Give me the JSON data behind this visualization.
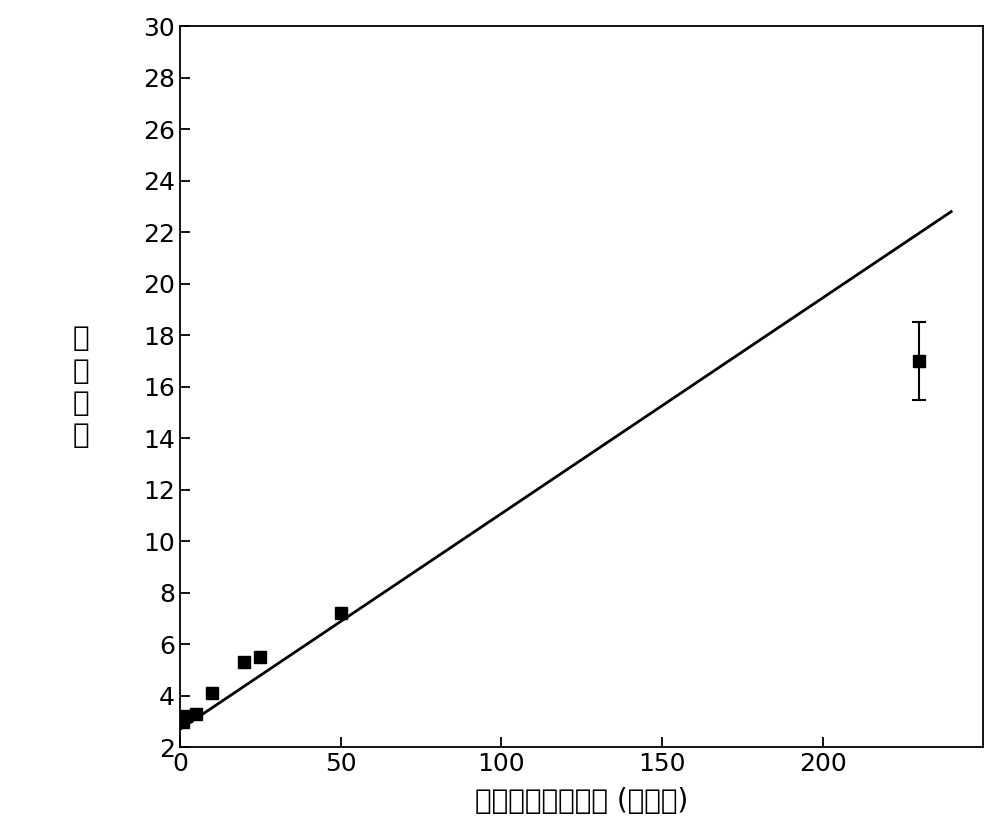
{
  "x_data": [
    1,
    2,
    5,
    10,
    20,
    25,
    50,
    230
  ],
  "y_data": [
    3.0,
    3.2,
    3.3,
    4.1,
    5.3,
    5.5,
    7.2,
    17.0
  ],
  "y_err": [
    0.0,
    0.0,
    0.0,
    0.0,
    0.0,
    0.0,
    0.0,
    1.5
  ],
  "fit_x": [
    0,
    240
  ],
  "fit_y": [
    2.7,
    22.8
  ],
  "xlabel": "内源性非编码核酸 (皮摩尔)",
  "ylabel": "荧光强度",
  "xlim": [
    0,
    250
  ],
  "ylim": [
    2,
    30
  ],
  "xticks": [
    0,
    50,
    100,
    150,
    200
  ],
  "yticks": [
    2,
    4,
    6,
    8,
    10,
    12,
    14,
    16,
    18,
    20,
    22,
    24,
    26,
    28,
    30
  ],
  "marker_color": "#000000",
  "line_color": "#000000",
  "background_color": "#ffffff",
  "xlabel_fontsize": 20,
  "ylabel_fontsize": 20,
  "tick_fontsize": 18,
  "marker_size": 9,
  "line_width": 2.0
}
